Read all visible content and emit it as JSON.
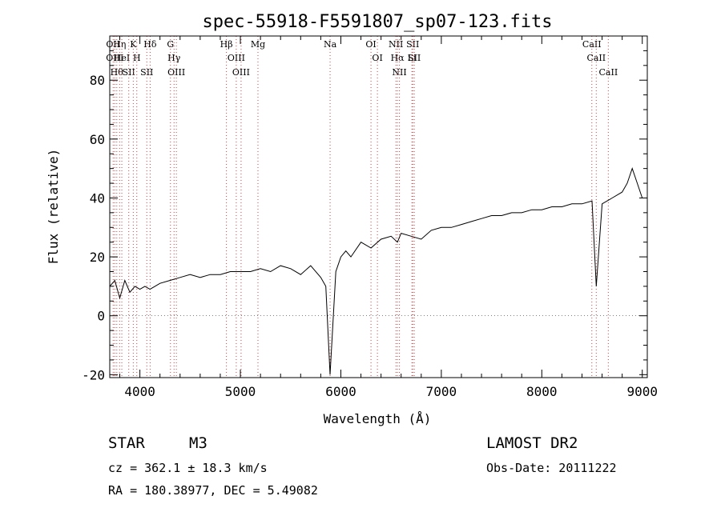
{
  "chart_data": {
    "type": "line",
    "title": "spec-55918-F5591807_sp07-123.fits",
    "xlabel": "Wavelength (Å)",
    "ylabel": "Flux (relative)",
    "xlim": [
      3700,
      9050
    ],
    "ylim": [
      -21,
      95
    ],
    "xticks": [
      4000,
      5000,
      6000,
      7000,
      8000,
      9000
    ],
    "yticks": [
      -20,
      0,
      20,
      40,
      60,
      80
    ],
    "grid": false,
    "series": [
      {
        "x": [
          3700,
          3750,
          3800,
          3850,
          3900,
          3950,
          4000,
          4050,
          4100,
          4150,
          4200,
          4300,
          4400,
          4500,
          4600,
          4700,
          4800,
          4900,
          5000,
          5100,
          5200,
          5300,
          5400,
          5500,
          5600,
          5700,
          5800,
          5850,
          5893,
          5950,
          6000,
          6050,
          6100,
          6200,
          6300,
          6400,
          6500,
          6563,
          6600,
          6700,
          6800,
          6900,
          7000,
          7100,
          7200,
          7300,
          7400,
          7500,
          7600,
          7700,
          7800,
          7900,
          8000,
          8100,
          8200,
          8300,
          8400,
          8500,
          8542,
          8600,
          8700,
          8800,
          8850,
          8900,
          8950,
          9000
        ],
        "y": [
          10,
          12,
          6,
          12,
          8,
          10,
          9,
          10,
          9,
          10,
          11,
          12,
          13,
          14,
          13,
          14,
          14,
          15,
          15,
          15,
          16,
          15,
          17,
          16,
          14,
          17,
          13,
          10,
          -20,
          15,
          20,
          22,
          20,
          25,
          23,
          26,
          27,
          25,
          28,
          27,
          26,
          29,
          30,
          30,
          31,
          32,
          33,
          34,
          34,
          35,
          35,
          36,
          36,
          37,
          37,
          38,
          38,
          39,
          10,
          38,
          40,
          42,
          45,
          50,
          45,
          40
        ]
      }
    ],
    "lines": [
      {
        "x": 3734,
        "label": "OII"
      },
      {
        "x": 3750,
        "label": "OIII"
      },
      {
        "x": 3770,
        "label": "Hθ"
      },
      {
        "x": 3798,
        "label": "Hη"
      },
      {
        "x": 3820,
        "label": "HeI"
      },
      {
        "x": 3889,
        "label": "SII"
      },
      {
        "x": 3934,
        "label": "K"
      },
      {
        "x": 3969,
        "label": "H"
      },
      {
        "x": 4069,
        "label": "SII"
      },
      {
        "x": 4102,
        "label": "Hδ"
      },
      {
        "x": 4304,
        "label": "G"
      },
      {
        "x": 4340,
        "label": "Hγ"
      },
      {
        "x": 4363,
        "label": "OIII"
      },
      {
        "x": 4861,
        "label": "Hβ"
      },
      {
        "x": 4959,
        "label": "OIII"
      },
      {
        "x": 5007,
        "label": "OIII"
      },
      {
        "x": 5175,
        "label": "Mg"
      },
      {
        "x": 5893,
        "label": "Na"
      },
      {
        "x": 6300,
        "label": "OI"
      },
      {
        "x": 6364,
        "label": "OI"
      },
      {
        "x": 6548,
        "label": "NII"
      },
      {
        "x": 6563,
        "label": "Hα"
      },
      {
        "x": 6583,
        "label": "NII"
      },
      {
        "x": 6707,
        "label": "Li"
      },
      {
        "x": 6716,
        "label": "SII"
      },
      {
        "x": 6731,
        "label": "SII"
      },
      {
        "x": 8498,
        "label": "CaII"
      },
      {
        "x": 8542,
        "label": "CaII"
      },
      {
        "x": 8662,
        "label": "CaII"
      }
    ]
  },
  "info": {
    "class": "STAR",
    "subclass": "M3",
    "survey": "LAMOST DR2",
    "cz": "cz = 362.1 ± 18.3 km/s",
    "obs_date": "Obs-Date: 20111222",
    "coords": "RA = 180.38977, DEC =   5.49082"
  }
}
